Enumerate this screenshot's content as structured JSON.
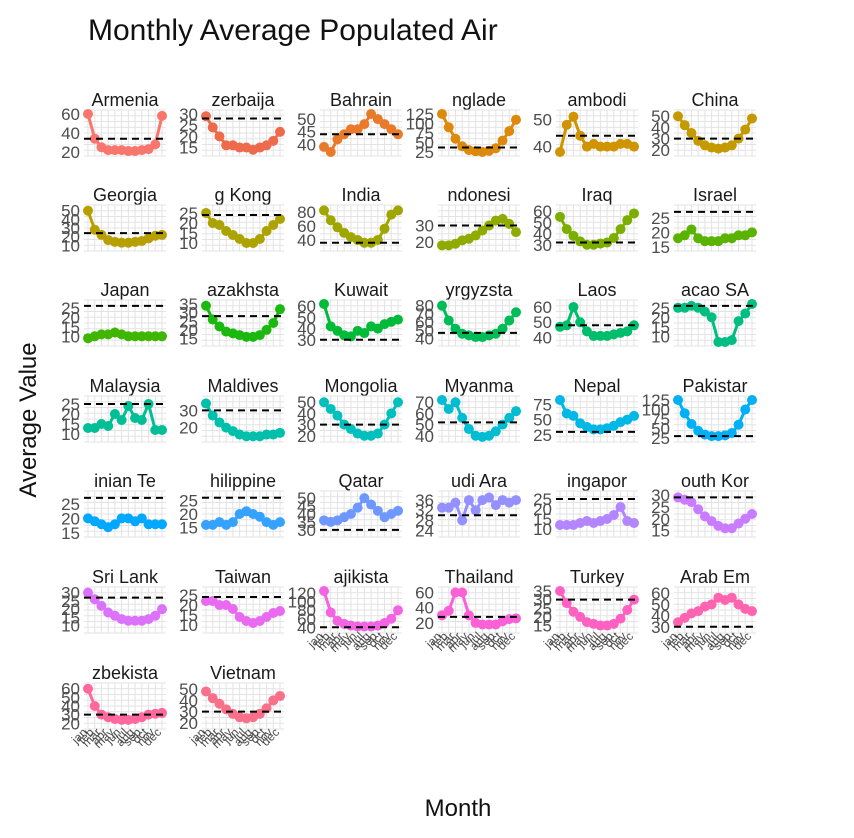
{
  "chart_data": {
    "type": "line",
    "title": "Monthly Average Populated Air",
    "xlabel": "Month",
    "ylabel": "Average Value",
    "x": [
      "jan",
      "feb",
      "mar",
      "apr",
      "may",
      "jun",
      "jul",
      "aug",
      "sep",
      "oct",
      "nov",
      "dec"
    ],
    "reference_line": "dashed",
    "grid": true,
    "legend": "none",
    "panels": [
      {
        "strip": "Armenia",
        "color": "#f8766d",
        "ticks": [
          20,
          40,
          60
        ],
        "ylim": [
          20,
          60
        ],
        "ref": 34,
        "values": [
          60,
          34,
          25,
          22,
          22,
          22,
          21,
          21,
          22,
          23,
          28,
          58
        ]
      },
      {
        "strip": "zerbaija",
        "color": "#ee6a4c",
        "ticks": [
          15,
          20,
          25,
          30
        ],
        "ylim": [
          13,
          30
        ],
        "ref": 28,
        "values": [
          29,
          24,
          20,
          16,
          16,
          15,
          15,
          14,
          15,
          16,
          18,
          22
        ]
      },
      {
        "strip": "Bahrain",
        "color": "#e87a2a",
        "ticks": [
          40,
          45,
          50
        ],
        "ylim": [
          37,
          52
        ],
        "ref": 44,
        "values": [
          39,
          37,
          42,
          44,
          46,
          46,
          48,
          52,
          50,
          48,
          46,
          44
        ]
      },
      {
        "strip": "nglade",
        "color": "#dd8a0c",
        "ticks": [
          25,
          50,
          75,
          100,
          125
        ],
        "ylim": [
          25,
          125
        ],
        "ref": 37,
        "values": [
          125,
          90,
          60,
          40,
          30,
          27,
          25,
          28,
          35,
          55,
          80,
          110
        ]
      },
      {
        "strip": "ambodi",
        "color": "#cf9400",
        "ticks": [
          40,
          50
        ],
        "ylim": [
          38,
          52
        ],
        "ref": 44,
        "values": [
          38,
          48,
          51,
          44,
          40,
          41,
          40,
          40,
          40,
          41,
          41,
          40
        ]
      },
      {
        "strip": "China",
        "color": "#c49a00",
        "ticks": [
          20,
          30,
          40,
          50
        ],
        "ylim": [
          18,
          52
        ],
        "ref": 30,
        "values": [
          50,
          42,
          35,
          28,
          24,
          22,
          21,
          22,
          24,
          30,
          38,
          48
        ]
      },
      {
        "strip": "Georgia",
        "color": "#b89f00",
        "ticks": [
          10,
          20,
          30,
          40,
          50
        ],
        "ylim": [
          8,
          52
        ],
        "ref": 24,
        "values": [
          50,
          28,
          22,
          16,
          14,
          13,
          13,
          14,
          15,
          18,
          21,
          22
        ]
      },
      {
        "strip": "g Kong",
        "color": "#aca300",
        "ticks": [
          10,
          15,
          20,
          25
        ],
        "ylim": [
          8,
          27
        ],
        "ref": 24,
        "values": [
          25,
          20,
          19,
          16,
          14,
          12,
          10,
          10,
          12,
          16,
          19,
          22
        ]
      },
      {
        "strip": "India",
        "color": "#a0a600",
        "ticks": [
          40,
          60,
          80
        ],
        "ylim": [
          30,
          84
        ],
        "ref": 36,
        "values": [
          82,
          68,
          58,
          50,
          44,
          40,
          36,
          36,
          40,
          56,
          76,
          82
        ]
      },
      {
        "strip": "ndonesi",
        "color": "#8fab00",
        "ticks": [
          20,
          30
        ],
        "ylim": [
          17,
          40
        ],
        "ref": 30,
        "values": [
          18,
          18,
          19,
          21,
          22,
          24,
          27,
          30,
          33,
          34,
          31,
          26
        ]
      },
      {
        "strip": "Iraq",
        "color": "#7cae00",
        "ticks": [
          30,
          40,
          50,
          60
        ],
        "ylim": [
          28,
          62
        ],
        "ref": 32,
        "values": [
          55,
          44,
          38,
          33,
          30,
          30,
          31,
          32,
          36,
          44,
          52,
          58
        ]
      },
      {
        "strip": "Israel",
        "color": "#5ab300",
        "ticks": [
          15,
          20,
          25
        ],
        "ylim": [
          15,
          28
        ],
        "ref": 27,
        "values": [
          18,
          19,
          21,
          18,
          17,
          17,
          17,
          18,
          18,
          19,
          19,
          20
        ]
      },
      {
        "strip": "Japan",
        "color": "#3fb600",
        "ticks": [
          10,
          15,
          20,
          25
        ],
        "ylim": [
          7,
          27
        ],
        "ref": 26,
        "values": [
          9,
          10,
          11,
          11,
          12,
          11,
          10,
          10,
          10,
          10,
          10,
          10
        ]
      },
      {
        "strip": "azakhsta",
        "color": "#1bb90f",
        "ticks": [
          15,
          20,
          25,
          30,
          35
        ],
        "ylim": [
          13,
          35
        ],
        "ref": 28,
        "values": [
          34,
          26,
          22,
          19,
          18,
          17,
          16,
          16,
          17,
          20,
          24,
          32
        ]
      },
      {
        "strip": "Kuwait",
        "color": "#00ba38",
        "ticks": [
          30,
          40,
          50,
          60
        ],
        "ylim": [
          28,
          62
        ],
        "ref": 30,
        "values": [
          62,
          42,
          38,
          34,
          33,
          38,
          36,
          42,
          40,
          44,
          46,
          48
        ]
      },
      {
        "strip": "yrgyzsta",
        "color": "#00bc56",
        "ticks": [
          40,
          50,
          60,
          70,
          80
        ],
        "ylim": [
          36,
          82
        ],
        "ref": 47,
        "values": [
          80,
          62,
          52,
          46,
          44,
          42,
          42,
          44,
          46,
          52,
          62,
          72
        ]
      },
      {
        "strip": "Laos",
        "color": "#00bd6c",
        "ticks": [
          40,
          50,
          60
        ],
        "ylim": [
          37,
          62
        ],
        "ref": 48,
        "values": [
          47,
          48,
          60,
          50,
          44,
          41,
          41,
          41,
          42,
          43,
          44,
          48
        ]
      },
      {
        "strip": "acao SA",
        "color": "#00be82",
        "ticks": [
          10,
          15,
          20,
          25
        ],
        "ylim": [
          7,
          27
        ],
        "ref": 26,
        "values": [
          25,
          25,
          26,
          25,
          23,
          20,
          7,
          7,
          8,
          18,
          22,
          27
        ]
      },
      {
        "strip": "Malaysia",
        "color": "#00bf96",
        "ticks": [
          10,
          15,
          20,
          25
        ],
        "ylim": [
          8,
          27
        ],
        "ref": 25,
        "values": [
          13,
          13,
          15,
          14,
          20,
          17,
          24,
          18,
          17,
          25,
          12,
          12
        ]
      },
      {
        "strip": "Maldives",
        "color": "#00c0ab",
        "ticks": [
          20,
          30
        ],
        "ylim": [
          14,
          36
        ],
        "ref": 30,
        "values": [
          34,
          27,
          23,
          20,
          18,
          16,
          15,
          15,
          15,
          16,
          16,
          17
        ]
      },
      {
        "strip": "Mongolia",
        "color": "#00c0be",
        "ticks": [
          20,
          30,
          40,
          50
        ],
        "ylim": [
          18,
          52
        ],
        "ref": 30,
        "values": [
          50,
          44,
          38,
          30,
          26,
          22,
          20,
          20,
          22,
          30,
          40,
          50
        ]
      },
      {
        "strip": "Myanma",
        "color": "#00bdd1",
        "ticks": [
          40,
          50,
          60,
          70
        ],
        "ylim": [
          38,
          72
        ],
        "ref": 52,
        "values": [
          72,
          64,
          70,
          56,
          46,
          40,
          39,
          40,
          44,
          50,
          56,
          62
        ]
      },
      {
        "strip": "Nepal",
        "color": "#00b8e5",
        "ticks": [
          25,
          50,
          75
        ],
        "ylim": [
          20,
          82
        ],
        "ref": 30,
        "values": [
          82,
          60,
          56,
          44,
          38,
          34,
          34,
          36,
          40,
          46,
          50,
          56
        ]
      },
      {
        "strip": "Pakistar",
        "color": "#00b0f6",
        "ticks": [
          25,
          50,
          75,
          100,
          125
        ],
        "ylim": [
          25,
          125
        ],
        "ref": 30,
        "values": [
          125,
          90,
          62,
          44,
          34,
          30,
          30,
          32,
          38,
          60,
          100,
          125
        ]
      },
      {
        "strip": "inian Te",
        "color": "#00a9ff",
        "ticks": [
          15,
          20,
          25
        ],
        "ylim": [
          15,
          28
        ],
        "ref": 27,
        "values": [
          20,
          19,
          18,
          17,
          18,
          20,
          20,
          19,
          20,
          18,
          18,
          18
        ]
      },
      {
        "strip": "hilippine",
        "color": "#35a2ff",
        "ticks": [
          15,
          20,
          25
        ],
        "ylim": [
          13,
          27
        ],
        "ref": 26,
        "values": [
          16,
          16,
          17,
          16,
          17,
          20,
          21,
          20,
          19,
          17,
          16,
          17
        ]
      },
      {
        "strip": "Qatar",
        "color": "#6e98ff",
        "ticks": [
          30,
          35,
          40,
          45,
          50
        ],
        "ylim": [
          28,
          52
        ],
        "ref": 30,
        "values": [
          36,
          35,
          36,
          38,
          40,
          44,
          50,
          46,
          42,
          38,
          40,
          42
        ]
      },
      {
        "strip": "udi Ara",
        "color": "#9590ff",
        "ticks": [
          24,
          28,
          32,
          36
        ],
        "ylim": [
          23,
          38
        ],
        "ref": 30,
        "values": [
          33,
          33,
          35,
          28,
          36,
          32,
          36,
          37,
          34,
          36,
          35,
          36
        ]
      },
      {
        "strip": "ingapor",
        "color": "#b385ff",
        "ticks": [
          10,
          15,
          20,
          25
        ],
        "ylim": [
          8,
          27
        ],
        "ref": 25,
        "values": [
          12,
          12,
          12,
          13,
          14,
          13,
          14,
          15,
          17,
          21,
          14,
          13
        ]
      },
      {
        "strip": "outh Kor",
        "color": "#c97cff",
        "ticks": [
          15,
          20,
          25,
          30
        ],
        "ylim": [
          14,
          30
        ],
        "ref": 29,
        "values": [
          29,
          28,
          27,
          24,
          21,
          19,
          17,
          16,
          16,
          18,
          20,
          22
        ]
      },
      {
        "strip": "Sri Lank",
        "color": "#dc71fa",
        "ticks": [
          10,
          15,
          20,
          25,
          30
        ],
        "ylim": [
          8,
          31
        ],
        "ref": 27,
        "values": [
          30,
          26,
          22,
          18,
          16,
          14,
          13,
          13,
          13,
          14,
          16,
          20
        ]
      },
      {
        "strip": "Taiwan",
        "color": "#e96af0",
        "ticks": [
          10,
          15,
          20,
          25
        ],
        "ylim": [
          8,
          27
        ],
        "ref": 24,
        "values": [
          22,
          22,
          20,
          20,
          18,
          14,
          12,
          11,
          12,
          14,
          16,
          17
        ]
      },
      {
        "strip": "ajikista",
        "color": "#f364e3",
        "ticks": [
          40,
          60,
          80,
          100,
          120
        ],
        "ylim": [
          36,
          125
        ],
        "ref": 40,
        "values": [
          125,
          75,
          55,
          48,
          44,
          42,
          42,
          42,
          44,
          50,
          60,
          80
        ]
      },
      {
        "strip": "Thailand",
        "color": "#fb61d7",
        "ticks": [
          20,
          40,
          60
        ],
        "ylim": [
          12,
          62
        ],
        "ref": 28,
        "values": [
          30,
          36,
          60,
          60,
          30,
          20,
          18,
          18,
          18,
          22,
          25,
          26
        ]
      },
      {
        "strip": "Turkey",
        "color": "#ff61c3",
        "ticks": [
          15,
          20,
          25,
          30,
          35
        ],
        "ylim": [
          13,
          35
        ],
        "ref": 30,
        "values": [
          35,
          28,
          23,
          20,
          17,
          16,
          15,
          15,
          16,
          19,
          24,
          30
        ]
      },
      {
        "strip": "Arab Em",
        "color": "#ff64b0",
        "ticks": [
          30,
          40,
          50,
          60
        ],
        "ylim": [
          28,
          62
        ],
        "ref": 30,
        "values": [
          34,
          38,
          42,
          44,
          48,
          50,
          56,
          54,
          56,
          50,
          46,
          44
        ]
      },
      {
        "strip": "zbekista",
        "color": "#ff689e",
        "ticks": [
          20,
          30,
          40,
          50,
          60
        ],
        "ylim": [
          18,
          62
        ],
        "ref": 30,
        "values": [
          60,
          40,
          30,
          27,
          25,
          24,
          24,
          25,
          27,
          30,
          31,
          32
        ]
      },
      {
        "strip": "Vietnam",
        "color": "#f8708a",
        "ticks": [
          20,
          30,
          40,
          50
        ],
        "ylim": [
          18,
          52
        ],
        "ref": 30,
        "values": [
          48,
          42,
          37,
          32,
          28,
          25,
          24,
          25,
          28,
          33,
          40,
          44
        ]
      }
    ]
  }
}
